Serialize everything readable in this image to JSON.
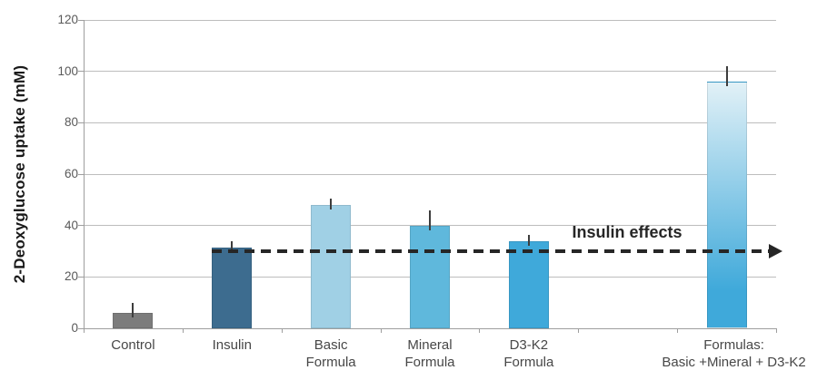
{
  "chart_data": {
    "type": "bar",
    "title": "",
    "xlabel": "",
    "ylabel": "2-Deoxyglucose uptake (mM)",
    "ylim": [
      0,
      120
    ],
    "yticks": [
      0,
      20,
      40,
      60,
      80,
      100,
      120
    ],
    "grid": true,
    "legend": "none",
    "bars": [
      {
        "label": "Control",
        "value": 6,
        "error": 4,
        "color": "#7c7c7c"
      },
      {
        "label": "Insulin",
        "value": 31.5,
        "error": 2.5,
        "color": "#3d6c8f"
      },
      {
        "label": "Basic\nFormula",
        "value": 48,
        "error": 2.5,
        "color": "#a0d0e5"
      },
      {
        "label": "Mineral\nFormula",
        "value": 40,
        "error": 6,
        "color": "#5fb8dc"
      },
      {
        "label": "D3-K2\nFormula",
        "value": 34,
        "error": 2.5,
        "color": "#3fa9da"
      },
      {
        "label": "",
        "value": null,
        "error": null,
        "color": null
      },
      {
        "label": "Formulas:\nBasic +Mineral + D3-K2",
        "value": 96,
        "error": 6,
        "color": "gradient",
        "gradient": [
          "#e2f1f7",
          "#3fa9da"
        ]
      }
    ],
    "annotation": {
      "label": "Insulin effects",
      "line_y": 30,
      "style": "dashed-arrow",
      "color": "#262626"
    },
    "palette": {
      "gridline": "#bdbdbd",
      "axis": "#9e9e9e",
      "tick_text": "#595959",
      "category_text": "#474747",
      "error_bar": "#3d3d3d",
      "annotation": "#262626"
    }
  }
}
